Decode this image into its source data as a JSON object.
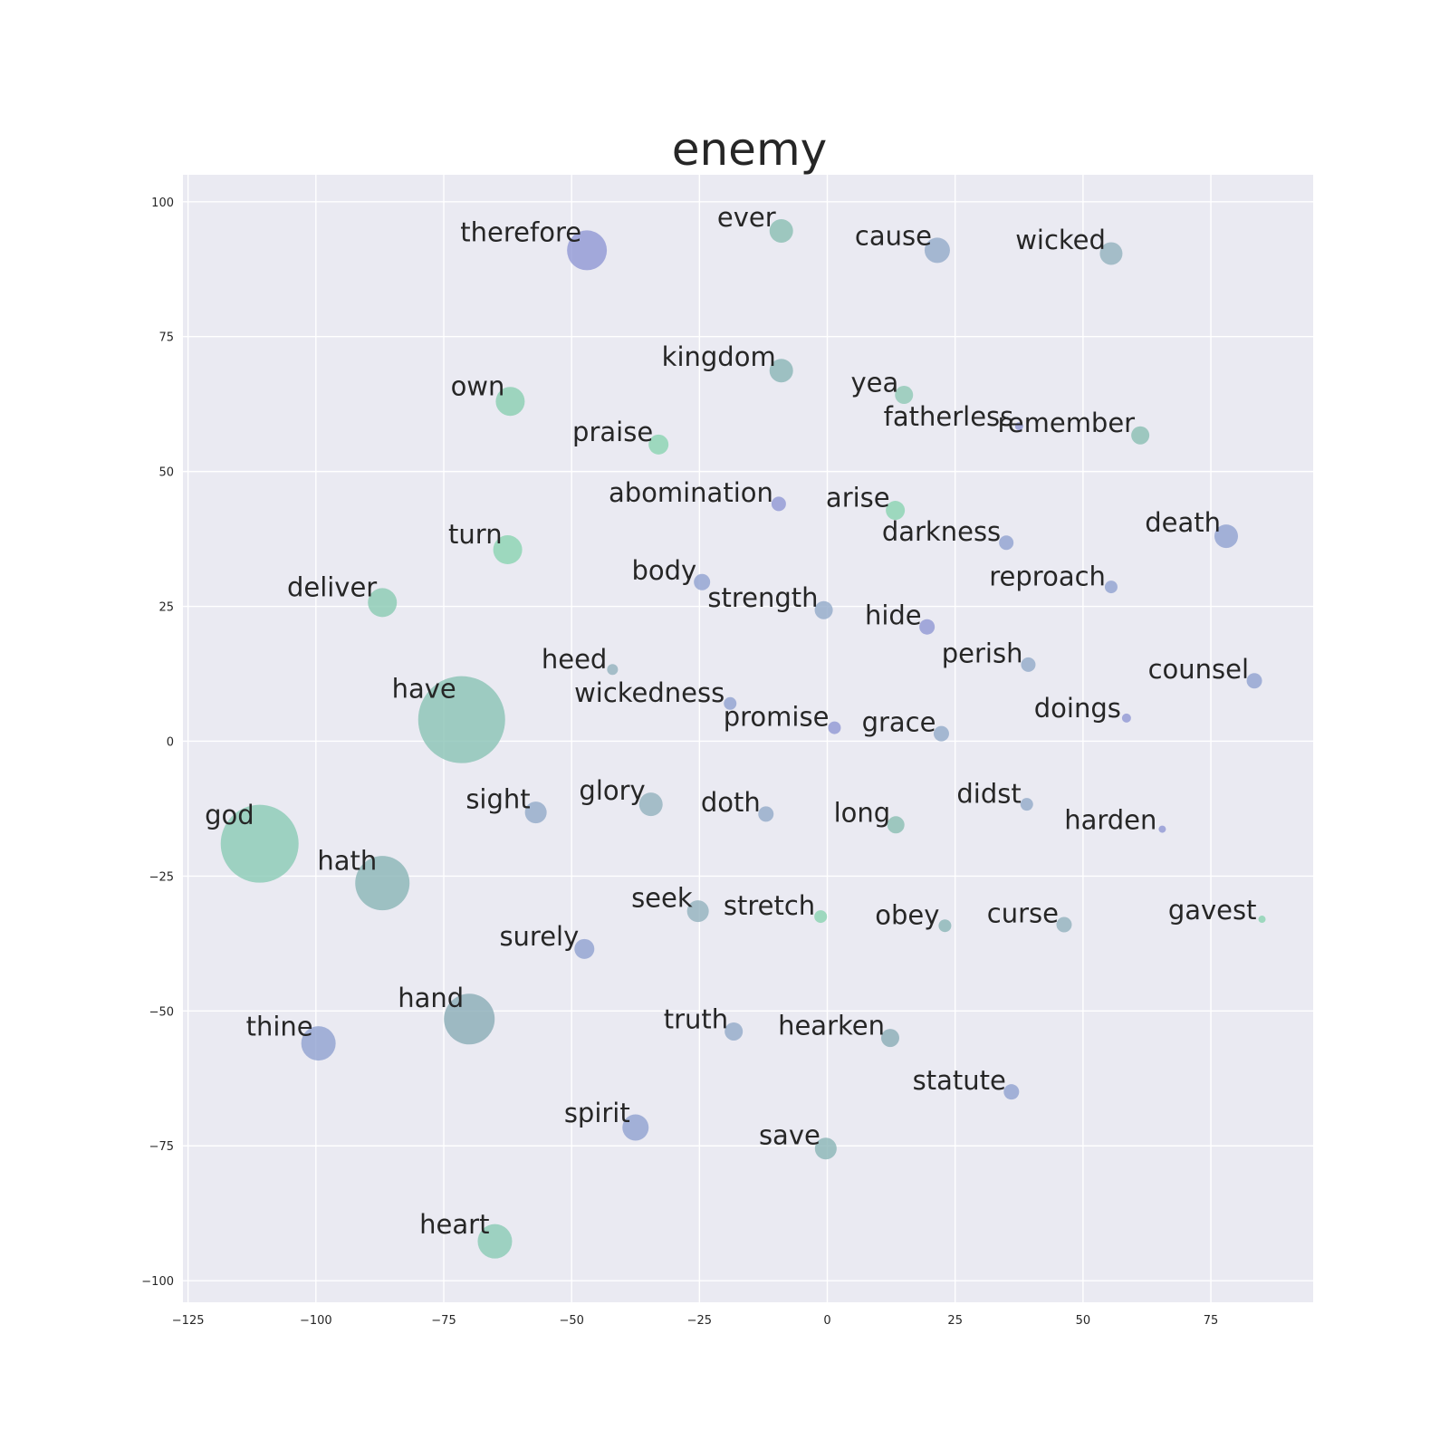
{
  "chart_data": {
    "type": "scatter",
    "title": "enemy",
    "xlabel": "",
    "ylabel": "",
    "xlim": [
      -126,
      95
    ],
    "ylim": [
      -104,
      105
    ],
    "grid": true,
    "xticks": [
      -125,
      -100,
      -75,
      -50,
      -25,
      0,
      25,
      50,
      75
    ],
    "yticks": [
      100,
      75,
      50,
      25,
      0,
      -25,
      -50,
      -75,
      -100
    ],
    "xtick_labels": [
      "−125",
      "−100",
      "−75",
      "−50",
      "−25",
      "0",
      "25",
      "50",
      "75"
    ],
    "ytick_labels": [
      "100",
      "75",
      "50",
      "25",
      "0",
      "−25",
      "−50",
      "−75",
      "−100"
    ],
    "points": [
      {
        "label": "therefore",
        "x": -47,
        "y": 91,
        "size": 22,
        "color": "#8d95d4"
      },
      {
        "label": "ever",
        "x": -9,
        "y": 94.6,
        "size": 13,
        "color": "#86bcb1"
      },
      {
        "label": "cause",
        "x": 21.5,
        "y": 91,
        "size": 14,
        "color": "#8fa8c8"
      },
      {
        "label": "wicked",
        "x": 55.5,
        "y": 90.4,
        "size": 12.5,
        "color": "#8fb0bd"
      },
      {
        "label": "kingdom",
        "x": -9,
        "y": 68.7,
        "size": 13,
        "color": "#86b4b5"
      },
      {
        "label": "yea",
        "x": 15,
        "y": 64.2,
        "size": 10,
        "color": "#8cc7b3"
      },
      {
        "label": "fatherless",
        "x": 37.5,
        "y": 58.4,
        "size": 4.5,
        "color": "#8d95d4"
      },
      {
        "label": "remember",
        "x": 61.2,
        "y": 56.7,
        "size": 10,
        "color": "#86bcb1"
      },
      {
        "label": "own",
        "x": -62,
        "y": 63,
        "size": 16,
        "color": "#86cdb0"
      },
      {
        "label": "praise",
        "x": -33,
        "y": 55,
        "size": 11,
        "color": "#86d2b0"
      },
      {
        "label": "abomination",
        "x": -9.5,
        "y": 44,
        "size": 8,
        "color": "#8d95d4"
      },
      {
        "label": "arise",
        "x": 13.3,
        "y": 42.8,
        "size": 10.5,
        "color": "#86d2b0"
      },
      {
        "label": "darkness",
        "x": 35,
        "y": 36.8,
        "size": 8,
        "color": "#8d9fd0"
      },
      {
        "label": "death",
        "x": 78,
        "y": 38,
        "size": 13,
        "color": "#8d9fd0"
      },
      {
        "label": "turn",
        "x": -62.5,
        "y": 35.5,
        "size": 16,
        "color": "#86d2b0"
      },
      {
        "label": "body",
        "x": -24.5,
        "y": 29.5,
        "size": 9,
        "color": "#8d9fd0"
      },
      {
        "label": "reproach",
        "x": 55.5,
        "y": 28.6,
        "size": 7,
        "color": "#8d9fd0"
      },
      {
        "label": "deliver",
        "x": -87,
        "y": 25.7,
        "size": 16,
        "color": "#86c9b1"
      },
      {
        "label": "strength",
        "x": -0.7,
        "y": 24.3,
        "size": 10,
        "color": "#8fa8c8"
      },
      {
        "label": "hide",
        "x": 19.5,
        "y": 21.2,
        "size": 8.5,
        "color": "#8d95d4"
      },
      {
        "label": "perish",
        "x": 39.3,
        "y": 14.2,
        "size": 8,
        "color": "#8fa8c8"
      },
      {
        "label": "counsel",
        "x": 83.5,
        "y": 11.2,
        "size": 8.5,
        "color": "#8d9fd0"
      },
      {
        "label": "heed",
        "x": -42,
        "y": 13.3,
        "size": 6,
        "color": "#8fb0bd"
      },
      {
        "label": "wickedness",
        "x": -19,
        "y": 7,
        "size": 7,
        "color": "#8d9fd0"
      },
      {
        "label": "promise",
        "x": 1.4,
        "y": 2.5,
        "size": 7,
        "color": "#8d95d4"
      },
      {
        "label": "grace",
        "x": 22.3,
        "y": 1.4,
        "size": 8.5,
        "color": "#8fa8c8"
      },
      {
        "label": "doings",
        "x": 58.5,
        "y": 4.3,
        "size": 5,
        "color": "#8d95d4"
      },
      {
        "label": "have",
        "x": -71.5,
        "y": 4,
        "size": 48,
        "color": "#86c2b3"
      },
      {
        "label": "sight",
        "x": -57,
        "y": -13.2,
        "size": 12,
        "color": "#8fa8c8"
      },
      {
        "label": "glory",
        "x": -34.5,
        "y": -11.7,
        "size": 13,
        "color": "#8fb0bd"
      },
      {
        "label": "doth",
        "x": -12,
        "y": -13.5,
        "size": 8.5,
        "color": "#8fa8c8"
      },
      {
        "label": "long",
        "x": 13.4,
        "y": -15.5,
        "size": 9.5,
        "color": "#86bcb1"
      },
      {
        "label": "didst",
        "x": 39,
        "y": -11.7,
        "size": 7,
        "color": "#8fa8c8"
      },
      {
        "label": "harden",
        "x": 65.5,
        "y": -16.3,
        "size": 4,
        "color": "#8d95d4"
      },
      {
        "label": "god",
        "x": -111,
        "y": -19,
        "size": 43,
        "color": "#86c9b4"
      },
      {
        "label": "hath",
        "x": -87,
        "y": -26.3,
        "size": 30,
        "color": "#86b4b5"
      },
      {
        "label": "seek",
        "x": -25.3,
        "y": -31.5,
        "size": 12,
        "color": "#8fb0bd"
      },
      {
        "label": "stretch",
        "x": -1.3,
        "y": -32.5,
        "size": 7,
        "color": "#86d2b0"
      },
      {
        "label": "obey",
        "x": 23,
        "y": -34.2,
        "size": 7,
        "color": "#86b4b5"
      },
      {
        "label": "curse",
        "x": 46.3,
        "y": -34,
        "size": 8.5,
        "color": "#8fb0bd"
      },
      {
        "label": "gavest",
        "x": 85,
        "y": -33,
        "size": 4,
        "color": "#86d2b0"
      },
      {
        "label": "surely",
        "x": -47.5,
        "y": -38.5,
        "size": 11,
        "color": "#8d9fd0"
      },
      {
        "label": "hand",
        "x": -70,
        "y": -51.5,
        "size": 28,
        "color": "#86aab5"
      },
      {
        "label": "thine",
        "x": -99.5,
        "y": -56,
        "size": 19,
        "color": "#8d9fd0"
      },
      {
        "label": "truth",
        "x": -18.3,
        "y": -53.8,
        "size": 10,
        "color": "#8fa8c8"
      },
      {
        "label": "hearken",
        "x": 12.3,
        "y": -55,
        "size": 10,
        "color": "#86aab5"
      },
      {
        "label": "statute",
        "x": 36,
        "y": -65,
        "size": 8.5,
        "color": "#8d9fd0"
      },
      {
        "label": "spirit",
        "x": -37.5,
        "y": -71.6,
        "size": 14.5,
        "color": "#8d9fd0"
      },
      {
        "label": "save",
        "x": -0.3,
        "y": -75.5,
        "size": 12,
        "color": "#86b4b5"
      },
      {
        "label": "heart",
        "x": -65,
        "y": -92.7,
        "size": 19,
        "color": "#86c9b4"
      }
    ]
  }
}
